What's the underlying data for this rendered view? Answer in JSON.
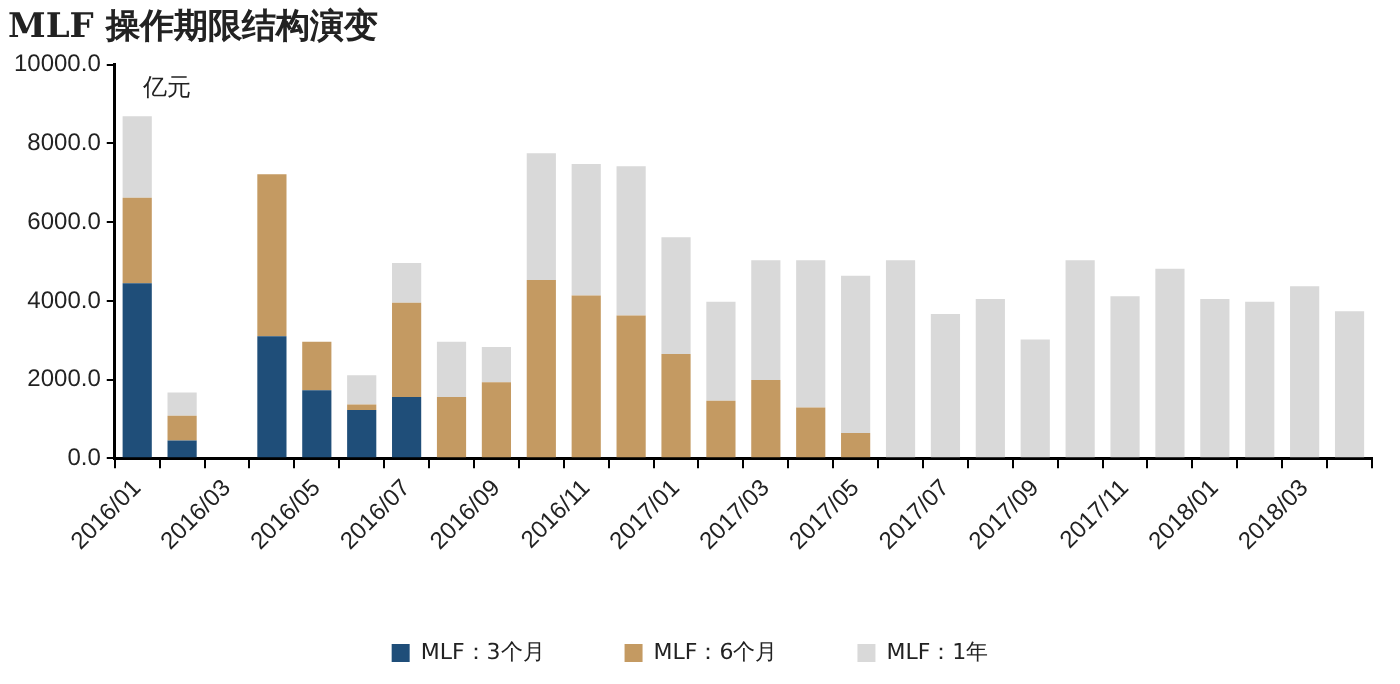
{
  "chart_data": {
    "type": "bar",
    "title": "MLF 操作期限结构演变",
    "stacked": true,
    "grid": false,
    "legend": "bottom",
    "annotations": [
      "亿元"
    ],
    "categories": [
      "2016/01",
      null,
      "2016/03",
      null,
      "2016/05",
      null,
      "2016/07",
      null,
      "2016/09",
      null,
      "2016/11",
      null,
      "2017/01",
      null,
      "2017/03",
      null,
      "2017/05",
      null,
      "2017/07",
      null,
      "2017/09",
      null,
      "2017/11",
      null,
      "2018/01",
      null,
      "2018/03",
      null
    ],
    "series": [
      {
        "name": "MLF：3个月",
        "color": "#1f4e79",
        "values": [
          4450,
          450,
          0,
          3100,
          1730,
          1230,
          1560,
          0,
          0,
          0,
          0,
          0,
          0,
          0,
          0,
          0,
          0,
          0,
          0,
          0,
          0,
          0,
          0,
          0,
          0,
          0,
          0,
          0
        ]
      },
      {
        "name": "MLF：6个月",
        "color": "#c49a62",
        "values": [
          2170,
          630,
          0,
          4120,
          1230,
          140,
          2390,
          1560,
          1930,
          4530,
          4140,
          3630,
          2650,
          1460,
          1990,
          1290,
          640,
          0,
          0,
          0,
          0,
          0,
          0,
          0,
          0,
          0,
          0,
          0
        ]
      },
      {
        "name": "MLF：1年",
        "color": "#d9d9d9",
        "values": [
          2070,
          590,
          0,
          0,
          0,
          740,
          1010,
          1400,
          900,
          3220,
          3340,
          3790,
          2970,
          2520,
          3040,
          3740,
          4000,
          5030,
          3670,
          4050,
          3020,
          5030,
          4120,
          4820,
          4050,
          3980,
          4370,
          3740
        ]
      }
    ],
    "ylim": [
      0,
      10000
    ],
    "yticks": [
      {
        "value": 0,
        "label": "0.0"
      },
      {
        "value": 2000,
        "label": "2000.0"
      },
      {
        "value": 4000,
        "label": "4000.0"
      },
      {
        "value": 6000,
        "label": "6000.0"
      },
      {
        "value": 8000,
        "label": "8000.0"
      },
      {
        "value": 10000,
        "label": "10000.0"
      }
    ]
  }
}
